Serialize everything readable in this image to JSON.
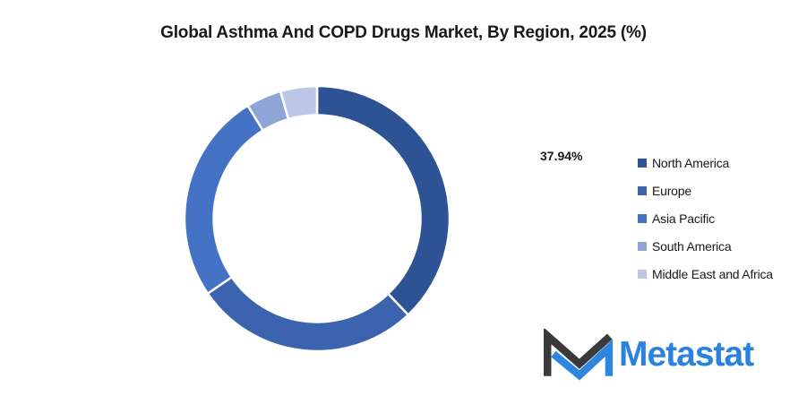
{
  "title": "Global Asthma And COPD Drugs Market, By Region, 2025 (%)",
  "chart_data": {
    "type": "pie",
    "subtype": "donut",
    "title": "Global Asthma And COPD Drugs Market, By Region, 2025 (%)",
    "categories": [
      "North America",
      "Europe",
      "Asia Pacific",
      "South America",
      "Middle East and Africa"
    ],
    "values": [
      37.94,
      27.5,
      25.8,
      4.3,
      4.46
    ],
    "colors": [
      "#2E5394",
      "#3B63AE",
      "#4472C4",
      "#8FA5D8",
      "#BCC7E8"
    ],
    "start_angle_deg": 0,
    "direction": "clockwise",
    "hole_ratio": 0.78,
    "slice_border_color": "#ffffff",
    "legend_position": "right",
    "data_labels": [
      {
        "slice": "North America",
        "text": "37.94%"
      }
    ]
  },
  "data_label": {
    "text": "37.94%"
  },
  "legend": {
    "items": [
      {
        "label": "North America",
        "color": "#2E5394"
      },
      {
        "label": "Europe",
        "color": "#3B63AE"
      },
      {
        "label": "Asia Pacific",
        "color": "#4472C4"
      },
      {
        "label": "South America",
        "color": "#8FA5D8"
      },
      {
        "label": "Middle East and Africa",
        "color": "#BCC7E8"
      }
    ]
  },
  "logo": {
    "text": "Metastat",
    "text_color": "#2A82DC",
    "mark_dark_color": "#3A3A3C",
    "mark_blue_color": "#2E86DE"
  }
}
